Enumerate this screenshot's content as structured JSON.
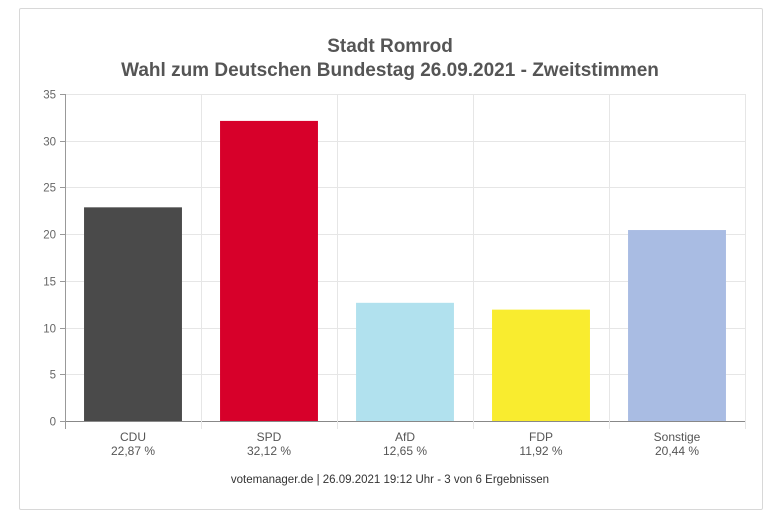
{
  "chart_data": {
    "type": "bar",
    "title": "Stadt Romrod",
    "subtitle": "Wahl zum Deutschen Bundestag 26.09.2021  - Zweitstimmen",
    "categories": [
      "CDU",
      "SPD",
      "AfD",
      "FDP",
      "Sonstige"
    ],
    "values": [
      22.87,
      32.12,
      12.65,
      11.92,
      20.44
    ],
    "value_labels": [
      "22,87 %",
      "32,12 %",
      "12,65 %",
      "11,92 %",
      "20,44 %"
    ],
    "colors": [
      "#4a4a4a",
      "#d7002a",
      "#b1e1ee",
      "#f9ec2f",
      "#a9bce3"
    ],
    "ylim": [
      0,
      35
    ],
    "yticks": [
      0,
      5,
      10,
      15,
      20,
      25,
      30,
      35
    ],
    "grid": true,
    "xlabel": "",
    "ylabel": ""
  },
  "footer": "votemanager.de | 26.09.2021 19:12 Uhr - 3 von 6 Ergebnissen"
}
